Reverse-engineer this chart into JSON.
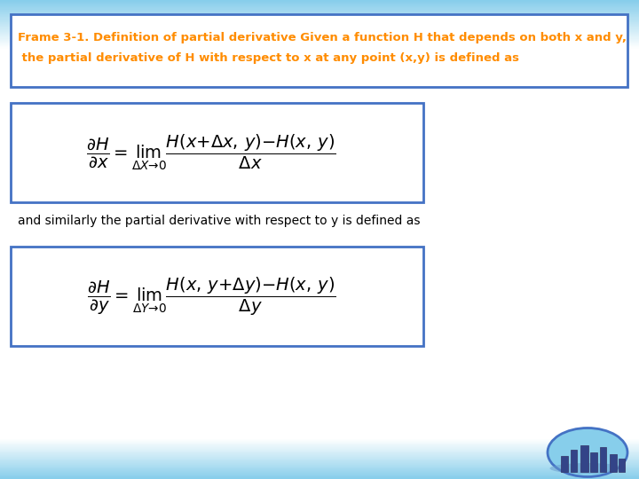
{
  "bg_top_color": "#87CEEB",
  "bg_white_color": "#FFFFFF",
  "bg_bottom_color": "#ADD8E6",
  "title_box_edge": "#4472C4",
  "title_text_color": "#FF8C00",
  "title_line1": "Frame 3-1. Definition of partial derivative Given a function H that depends on both x and y,",
  "title_line2": " the partial derivative of H with respect to x at any point (x,y) is defined as",
  "formula_box_edge": "#4472C4",
  "middle_text": "and similarly the partial derivative with respect to y is defined as",
  "title_fontsize": 9.5,
  "formula_fontsize": 14,
  "middle_fontsize": 10,
  "figsize": [
    7.2,
    5.4
  ],
  "dpi": 100
}
